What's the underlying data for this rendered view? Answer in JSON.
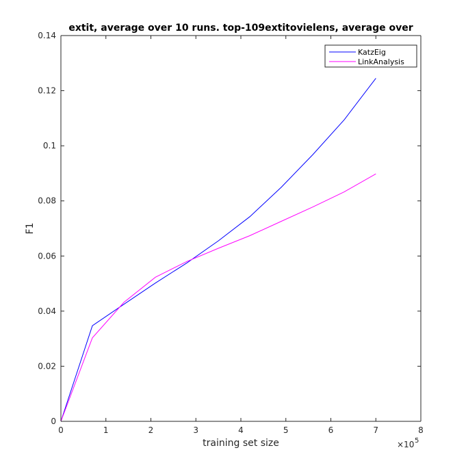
{
  "chart_data": {
    "type": "line",
    "title": "extit, average over 10 runs. top-109extitovielens, average over",
    "xlabel": "training set size",
    "ylabel": "F1",
    "x_exponent_label": "×10",
    "x_exponent_power": "5",
    "xlim": [
      0,
      8
    ],
    "ylim": [
      0,
      0.14
    ],
    "xticks": [
      0,
      1,
      2,
      3,
      4,
      5,
      6,
      7,
      8
    ],
    "yticks": [
      0,
      0.02,
      0.04,
      0.06,
      0.08,
      0.1,
      0.12,
      0.14
    ],
    "xtick_labels": [
      "0",
      "1",
      "2",
      "3",
      "4",
      "5",
      "6",
      "7",
      "8"
    ],
    "ytick_labels": [
      "0",
      "0.02",
      "0.04",
      "0.06",
      "0.08",
      "0.1",
      "0.12",
      "0.14"
    ],
    "legend_position": "top-right",
    "series": [
      {
        "name": "KatzEig",
        "color": "#0000ff",
        "x": [
          0,
          0.7,
          1.4,
          2.1,
          2.8,
          3.5,
          4.2,
          4.9,
          5.6,
          6.3,
          7.0
        ],
        "y": [
          0,
          0.0347,
          0.0425,
          0.0502,
          0.0575,
          0.0655,
          0.0743,
          0.085,
          0.0968,
          0.1095,
          0.1245
        ]
      },
      {
        "name": "LinkAnalysis",
        "color": "#ff00ff",
        "x": [
          0,
          0.7,
          1.4,
          2.1,
          2.8,
          3.5,
          4.2,
          4.9,
          5.6,
          6.3,
          7.0
        ],
        "y": [
          0,
          0.0303,
          0.0432,
          0.0523,
          0.058,
          0.0628,
          0.0674,
          0.0726,
          0.0778,
          0.0833,
          0.0898
        ]
      }
    ]
  }
}
